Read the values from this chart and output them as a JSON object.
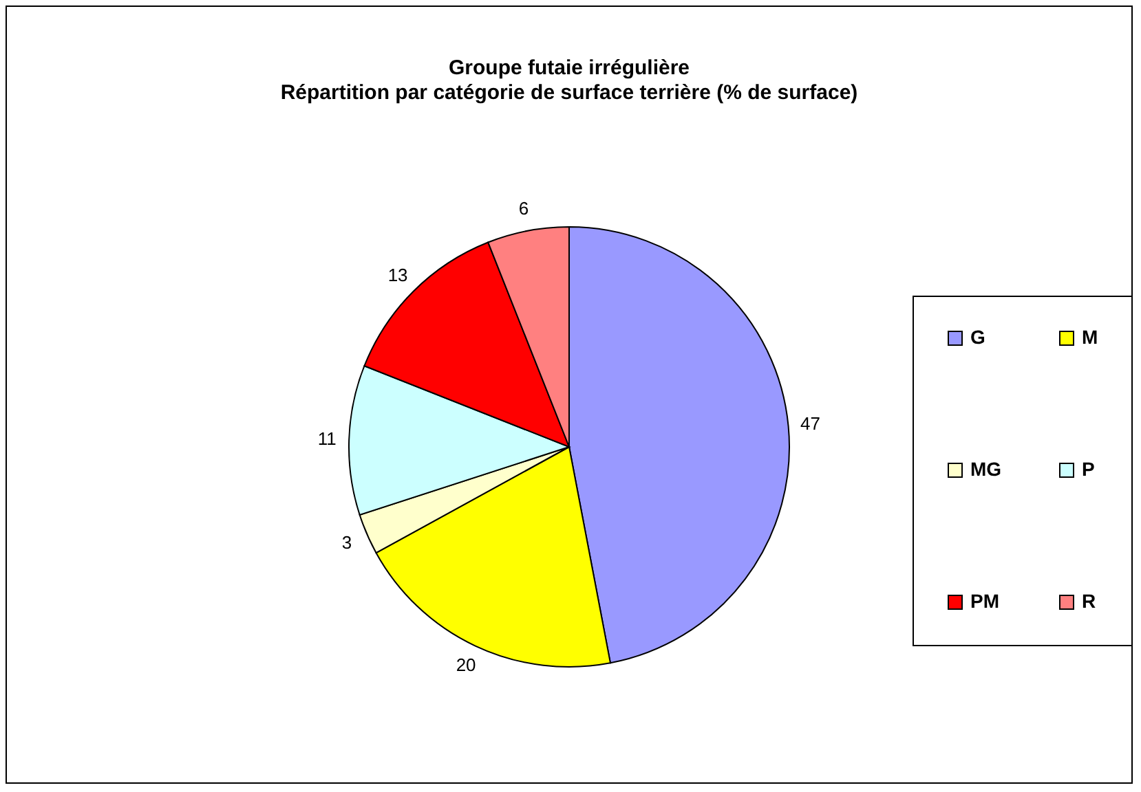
{
  "chart_data": {
    "type": "pie",
    "title": "Groupe futaie irrégulière",
    "subtitle": "Répartition par catégorie de surface terrière (% de surface)",
    "categories": [
      "G",
      "M",
      "MG",
      "P",
      "PM",
      "R"
    ],
    "values": [
      47,
      20,
      3,
      11,
      13,
      6
    ],
    "colors": [
      "#9999ff",
      "#ffff00",
      "#ffffcc",
      "#ccffff",
      "#ff0000",
      "#ff8080"
    ],
    "data_labels": true,
    "legend": "right"
  }
}
